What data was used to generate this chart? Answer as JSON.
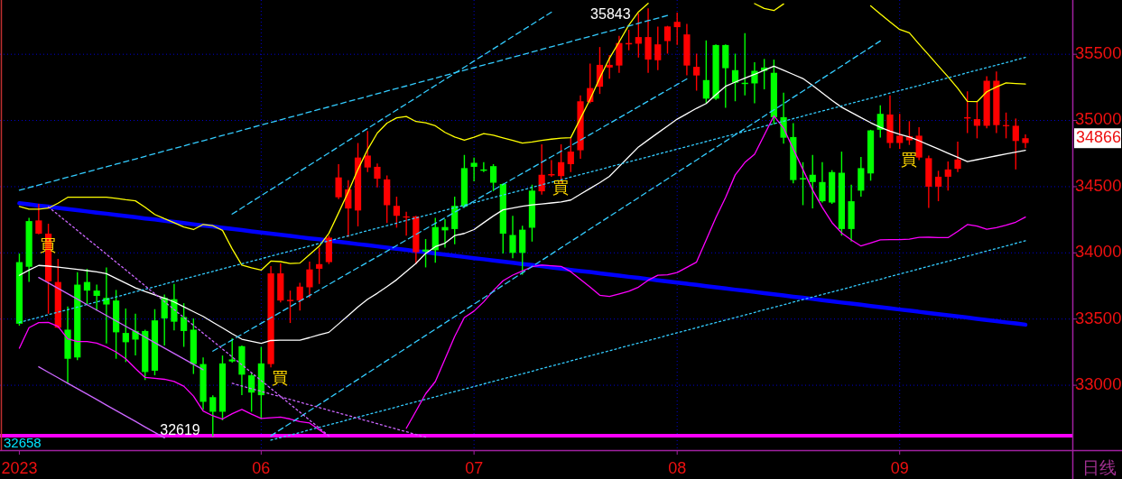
{
  "chart_data": {
    "type": "candlestick",
    "categories": [
      "2023",
      null,
      null,
      null,
      null,
      null,
      null,
      null,
      null,
      null,
      null,
      null,
      null,
      null,
      null,
      null,
      null,
      null,
      null,
      null,
      null,
      null,
      null,
      null,
      null,
      "06",
      null,
      null,
      null,
      null,
      null,
      null,
      null,
      null,
      null,
      null,
      null,
      null,
      null,
      null,
      null,
      null,
      null,
      null,
      null,
      null,
      null,
      "07",
      null,
      null,
      null,
      null,
      null,
      null,
      null,
      null,
      null,
      null,
      null,
      null,
      null,
      null,
      null,
      null,
      null,
      null,
      null,
      null,
      "08",
      null,
      null,
      null,
      null,
      null,
      null,
      null,
      null,
      null,
      null,
      null,
      null,
      null,
      null,
      null,
      null,
      null,
      null,
      null,
      null,
      null,
      null,
      "09",
      null,
      null,
      null,
      null,
      null,
      null,
      null,
      null,
      null,
      null,
      null,
      null,
      null
    ],
    "ohlc": [
      [
        33930,
        33990,
        33455,
        33465
      ],
      [
        34240,
        34260,
        33785,
        33895
      ],
      [
        34145,
        34365,
        34145,
        34245
      ],
      [
        33785,
        34215,
        33545,
        34145
      ],
      [
        33435,
        33950,
        33435,
        33780
      ],
      [
        33420,
        33590,
        33020,
        33200
      ],
      [
        33760,
        33850,
        33195,
        33210
      ],
      [
        33780,
        33875,
        33615,
        33715
      ],
      [
        33715,
        33755,
        33570,
        33675
      ],
      [
        33660,
        33885,
        33320,
        33610
      ],
      [
        33640,
        33715,
        33205,
        33400
      ],
      [
        33395,
        33575,
        33180,
        33325
      ],
      [
        33410,
        33535,
        33230,
        33345
      ],
      [
        33410,
        33415,
        33045,
        33100
      ],
      [
        33490,
        33570,
        33080,
        33110
      ],
      [
        33660,
        33680,
        33305,
        33505
      ],
      [
        33650,
        33760,
        33420,
        33480
      ],
      [
        33515,
        33615,
        33295,
        33410
      ],
      [
        33420,
        33500,
        33090,
        33160
      ],
      [
        33160,
        33205,
        32820,
        32875
      ],
      [
        32910,
        32920,
        32619,
        32800
      ],
      [
        33165,
        33220,
        32740,
        32800
      ],
      [
        33195,
        33350,
        33175,
        33180
      ],
      [
        33295,
        33295,
        32930,
        33080
      ],
      [
        33075,
        33090,
        32805,
        32945
      ],
      [
        33165,
        33285,
        32750,
        32925
      ],
      [
        33160,
        33895,
        33140,
        33845
      ],
      [
        33640,
        33915,
        33630,
        33845
      ],
      [
        33635,
        33710,
        33475,
        33645
      ],
      [
        33640,
        33770,
        33570,
        33745
      ],
      [
        33740,
        33930,
        33665,
        33875
      ],
      [
        33880,
        34035,
        33770,
        33915
      ],
      [
        33930,
        34125,
        33920,
        34115
      ],
      [
        34420,
        34665,
        34410,
        34570
      ],
      [
        34335,
        34545,
        34125,
        34480
      ],
      [
        34320,
        34825,
        34205,
        34720
      ],
      [
        34645,
        34915,
        34615,
        34735
      ],
      [
        34560,
        34670,
        34500,
        34650
      ],
      [
        34360,
        34580,
        34230,
        34555
      ],
      [
        34280,
        34420,
        34195,
        34355
      ],
      [
        34270,
        34305,
        34135,
        34275
      ],
      [
        34005,
        34275,
        33920,
        34275
      ],
      [
        34025,
        34100,
        33895,
        34010
      ],
      [
        34195,
        34260,
        33930,
        34020
      ],
      [
        34195,
        34250,
        34045,
        34170
      ],
      [
        34355,
        34420,
        34070,
        34180
      ],
      [
        34640,
        34735,
        34345,
        34350
      ],
      [
        34680,
        34715,
        34545,
        34650
      ],
      [
        34630,
        34680,
        34615,
        34620
      ],
      [
        34655,
        34665,
        34470,
        34530
      ],
      [
        34520,
        34520,
        34000,
        34145
      ],
      [
        34135,
        34275,
        33965,
        34000
      ],
      [
        34175,
        34200,
        33840,
        34000
      ],
      [
        34470,
        34510,
        34090,
        34190
      ],
      [
        34465,
        34815,
        34445,
        34590
      ],
      [
        34585,
        34695,
        34580,
        34595
      ],
      [
        34580,
        34815,
        34535,
        34685
      ],
      [
        34670,
        34865,
        34615,
        34765
      ],
      [
        34775,
        35185,
        34715,
        35145
      ],
      [
        35140,
        35425,
        35135,
        35245
      ],
      [
        35255,
        35550,
        35205,
        35420
      ],
      [
        35400,
        35490,
        35320,
        35420
      ],
      [
        35415,
        35635,
        35365,
        35585
      ],
      [
        35575,
        35680,
        35535,
        35585
      ],
      [
        35580,
        35805,
        35480,
        35630
      ],
      [
        35460,
        35843,
        35365,
        35630
      ],
      [
        35455,
        35705,
        35385,
        35575
      ],
      [
        35600,
        35710,
        35510,
        35710
      ],
      [
        35705,
        35810,
        35575,
        35745
      ],
      [
        35415,
        35725,
        35345,
        35650
      ],
      [
        35340,
        35500,
        35230,
        35405
      ],
      [
        35305,
        35600,
        35135,
        35165
      ],
      [
        35570,
        35570,
        35160,
        35165
      ],
      [
        35570,
        35570,
        35100,
        35395
      ],
      [
        35380,
        35500,
        35150,
        35285
      ],
      [
        35285,
        35655,
        35195,
        35275
      ],
      [
        35375,
        35435,
        35135,
        35280
      ],
      [
        35400,
        35460,
        35240,
        35375
      ],
      [
        35360,
        35455,
        34975,
        35025
      ],
      [
        35025,
        35205,
        34830,
        34870
      ],
      [
        34875,
        34975,
        34530,
        34550
      ],
      [
        34565,
        34680,
        34365,
        34555
      ],
      [
        34590,
        34735,
        34340,
        34535
      ],
      [
        34535,
        34680,
        34385,
        34390
      ],
      [
        34610,
        34620,
        34375,
        34380
      ],
      [
        34605,
        34760,
        34135,
        34180
      ],
      [
        34390,
        34510,
        34090,
        34180
      ],
      [
        34640,
        34720,
        34430,
        34470
      ],
      [
        34925,
        34925,
        34550,
        34600
      ],
      [
        35050,
        35110,
        34875,
        34930
      ],
      [
        34830,
        35185,
        34795,
        35045
      ],
      [
        34830,
        35045,
        34790,
        34885
      ],
      [
        34850,
        34990,
        34820,
        34880
      ],
      [
        34720,
        34945,
        34705,
        34885
      ],
      [
        34500,
        34730,
        34345,
        34715
      ],
      [
        34500,
        34615,
        34395,
        34575
      ],
      [
        34575,
        34685,
        34475,
        34630
      ],
      [
        34635,
        34835,
        34615,
        34705
      ],
      [
        35015,
        35215,
        34910,
        35025
      ],
      [
        34960,
        35135,
        34870,
        35010
      ],
      [
        34960,
        35330,
        34945,
        35300
      ],
      [
        34965,
        35365,
        34910,
        35300
      ],
      [
        34960,
        35055,
        34870,
        34965
      ],
      [
        34845,
        35010,
        34635,
        34960
      ],
      [
        34830,
        34890,
        34795,
        34866
      ]
    ],
    "colors": [
      "#00ff00",
      "#00ff00",
      "#ff0000",
      "#ff0000",
      "#ff0000",
      "#00ff00",
      "#00ff00",
      "#00ff00",
      "#00ff00",
      "#00ff00",
      "#00ff00",
      "#00ff00",
      "#00ff00",
      "#00ff00",
      "#00ff00",
      "#00ff00",
      "#00ff00",
      "#00ff00",
      "#00ff00",
      "#00ff00",
      "#00ff00",
      "#00ff00",
      "#00ff00",
      "#00ff00",
      "#00ff00",
      "#00ff00",
      "#ff0000",
      "#ff0000",
      "#ff0000",
      "#ff0000",
      "#ff0000",
      "#ff0000",
      "#ff0000",
      "#ff0000",
      "#ff0000",
      "#ff0000",
      "#ff0000",
      "#ff0000",
      "#ff0000",
      "#ff0000",
      "#ff0000",
      "#ff0000",
      "#00ff00",
      "#00ff00",
      "#00ff00",
      "#00ff00",
      "#00ff00",
      "#00ff00",
      "#00ff00",
      "#00ff00",
      "#00ff00",
      "#00ff00",
      "#00ff00",
      "#00ff00",
      "#ff0000",
      "#ff0000",
      "#ff0000",
      "#ff0000",
      "#ff0000",
      "#ff0000",
      "#ff0000",
      "#ff0000",
      "#ff0000",
      "#ff0000",
      "#ff0000",
      "#ff0000",
      "#ff0000",
      "#ff0000",
      "#ff0000",
      "#ff0000",
      "#ff0000",
      "#00ff00",
      "#00ff00",
      "#00ff00",
      "#00ff00",
      "#00ff00",
      "#00ff00",
      "#00ff00",
      "#00ff00",
      "#00ff00",
      "#00ff00",
      "#00ff00",
      "#00ff00",
      "#00ff00",
      "#00ff00",
      "#00ff00",
      "#00ff00",
      "#00ff00",
      "#00ff00",
      "#00ff00",
      "#ff0000",
      "#ff0000",
      "#ff0000",
      "#ff0000",
      "#ff0000",
      "#ff0000",
      "#ff0000",
      "#ff0000",
      "#ff0000",
      "#ff0000",
      "#ff0000",
      "#ff0000",
      "#ff0000",
      "#ff0000",
      "#ff0000"
    ],
    "value_labels": [
      null,
      null,
      "買",
      null,
      null,
      null,
      null,
      null,
      null,
      null,
      null,
      null,
      null,
      null,
      null,
      null,
      null,
      null,
      null,
      null,
      null,
      null,
      null,
      null,
      null,
      null,
      "買",
      null,
      null,
      null,
      null,
      null,
      null,
      null,
      null,
      null,
      null,
      null,
      null,
      null,
      null,
      null,
      null,
      null,
      null,
      null,
      null,
      null,
      null,
      null,
      null,
      null,
      null,
      null,
      null,
      "買",
      null,
      null,
      null,
      null,
      null,
      null,
      null,
      null,
      null,
      null,
      null,
      null,
      null,
      null,
      null,
      null,
      null,
      null,
      null,
      null,
      null,
      null,
      null,
      null,
      null,
      null,
      null,
      null,
      null,
      null,
      null,
      null,
      null,
      null,
      null,
      "買",
      null,
      null,
      null,
      null,
      null,
      null,
      null,
      null,
      null,
      null,
      null,
      null,
      null
    ],
    "series": [
      {
        "type": "line",
        "color": "#ffffff",
        "line_style": "solid",
        "values": [
          33830,
          33870,
          33905,
          33900,
          33892,
          33884,
          33875,
          33866,
          33857,
          33843,
          33807,
          33771,
          33736,
          33708,
          33683,
          33658,
          33629,
          33593,
          33556,
          33520,
          33476,
          33433,
          33389,
          33348,
          33332,
          33317,
          33338,
          33340,
          33340,
          33340,
          33360,
          33382,
          33400,
          33463,
          33527,
          33591,
          33650,
          33695,
          33745,
          33797,
          33859,
          33920,
          33996,
          34047,
          34073,
          34130,
          34147,
          34176,
          34228,
          34279,
          34325,
          34338,
          34352,
          34362,
          34369,
          34377,
          34384,
          34399,
          34443,
          34487,
          34530,
          34578,
          34652,
          34726,
          34800,
          34853,
          34906,
          34958,
          35010,
          35051,
          35092,
          35128,
          35195,
          35258,
          35290,
          35320,
          35348,
          35379,
          35410,
          35379,
          35348,
          35317,
          35264,
          35208,
          35152,
          35100,
          35061,
          35022,
          34983,
          34948,
          34920,
          34896,
          34875,
          34847,
          34816,
          34785,
          34753,
          34722,
          34690,
          34704,
          34718,
          34733,
          34747,
          34761,
          34775
        ]
      },
      {
        "type": "line",
        "color": "#ffff00",
        "line_style": "solid",
        "values": [
          34350,
          34330,
          34330,
          34338,
          34375,
          34420,
          34420,
          34420,
          34420,
          34420,
          34412,
          34401,
          34393,
          34345,
          34290,
          34258,
          34228,
          34195,
          34176,
          34215,
          34205,
          34170,
          34030,
          33908,
          33887,
          33870,
          33938,
          33934,
          33920,
          33923,
          33987,
          34051,
          34148,
          34303,
          34460,
          34630,
          34780,
          34905,
          34980,
          35020,
          35030,
          34992,
          34982,
          34960,
          34910,
          34875,
          34852,
          34873,
          34900,
          34889,
          34869,
          34849,
          34829,
          34838,
          34849,
          34859,
          34866,
          34870,
          35015,
          35160,
          35321,
          35470,
          35593,
          35720,
          35820,
          35885,
          null,
          null,
          null,
          null,
          null,
          null,
          null,
          null,
          null,
          null,
          35883,
          35846,
          35830,
          35880,
          null,
          null,
          null,
          null,
          null,
          null,
          null,
          null,
          35866,
          35805,
          35744,
          35687,
          35662,
          35577,
          35495,
          35412,
          35330,
          35243,
          35145,
          35142,
          35217,
          35253,
          35284,
          35279,
          35275
        ]
      },
      {
        "type": "line",
        "color": "#ff00ff",
        "line_style": "solid",
        "values": [
          33280,
          33435,
          33473,
          33475,
          33444,
          33351,
          33330,
          33330,
          33318,
          33289,
          33251,
          33200,
          33127,
          33059,
          33053,
          33045,
          33029,
          32993,
          32918,
          32805,
          32769,
          32745,
          32785,
          32817,
          32782,
          32750,
          32754,
          32759,
          32745,
          32726,
          32715,
          32664,
          32612,
          null,
          null,
          null,
          null,
          null,
          null,
          null,
          32675,
          32805,
          32936,
          33028,
          33198,
          33369,
          33512,
          33560,
          33630,
          33715,
          33789,
          33832,
          33863,
          33895,
          33908,
          33903,
          33898,
          33858,
          33800,
          33742,
          33680,
          33671,
          33690,
          33710,
          33741,
          33793,
          33831,
          33834,
          33851,
          33891,
          33930,
          34098,
          34266,
          34418,
          34589,
          34683,
          34745,
          34890,
          35035,
          34942,
          34785,
          34630,
          34475,
          34344,
          34229,
          34150,
          34098,
          34052,
          34075,
          34098,
          34100,
          34100,
          34103,
          34117,
          34118,
          34116,
          34115,
          34162,
          34214,
          34203,
          34178,
          34191,
          34209,
          34232,
          34270
        ]
      },
      {
        "type": "line",
        "color": "#0000ff",
        "line_style": "solid",
        "values": [
          34375,
          34366,
          34357,
          34349,
          34340,
          34331,
          34322,
          34313,
          34304,
          34296,
          34287,
          34278,
          34269,
          34260,
          34252,
          34243,
          34234,
          34225,
          34216,
          34207,
          34199,
          34190,
          34181,
          34172,
          34163,
          34154,
          34146,
          34137,
          34128,
          34119,
          34110,
          34102,
          34093,
          34084,
          34075,
          34066,
          34058,
          34049,
          34040,
          34031,
          34022,
          34013,
          34005,
          33996,
          33987,
          33978,
          33969,
          33960,
          33952,
          33943,
          33934,
          33925,
          33916,
          33908,
          33899,
          33890,
          33881,
          33872,
          33863,
          33855,
          33846,
          33837,
          33828,
          33819,
          33811,
          33802,
          33793,
          33784,
          33775,
          33767,
          33758,
          33749,
          33740,
          33731,
          33722,
          33714,
          33705,
          33696,
          33687,
          33678,
          33669,
          33661,
          33652,
          33643,
          33634,
          33625,
          33617,
          33608,
          33599,
          33590,
          33581,
          33572,
          33564,
          33555,
          33546,
          33537,
          33528,
          33520,
          33511,
          33502,
          33493,
          33484,
          33475,
          33467,
          33458
        ]
      },
      {
        "type": "line",
        "color": "#33ccff",
        "line_style": "dashed",
        "values": [
          34473,
          34493,
          34512,
          34532,
          34552,
          34572,
          34591,
          34611,
          34631,
          34650,
          34670,
          34690,
          34709,
          34729,
          34749,
          34769,
          34788,
          34808,
          34828,
          34847,
          34867,
          34887,
          34906,
          34926,
          34946,
          34966,
          34985,
          35005,
          35025,
          35044,
          35064,
          35084,
          35103,
          35123,
          35143,
          35163,
          35182,
          35202,
          35222,
          35241,
          35261,
          35281,
          35300,
          35320,
          35340,
          35360,
          35379,
          35399,
          35419,
          35438,
          35458,
          35478,
          35497,
          35517,
          35537,
          35557,
          35576,
          35596,
          35616,
          35635,
          35655,
          35675,
          35694,
          35714,
          35734,
          35754,
          35773,
          35793,
          null,
          null,
          null,
          null,
          null,
          null,
          null,
          null,
          null,
          null,
          null,
          null,
          null,
          null,
          null,
          null,
          null,
          null,
          null,
          null,
          null,
          null,
          null,
          null,
          null,
          null,
          null,
          null,
          null,
          null,
          null,
          null,
          null,
          null,
          null,
          null,
          null
        ]
      },
      {
        "type": "line",
        "color": "#33ccff",
        "line_style": "dotted",
        "values": [
          33475,
          33494,
          33513,
          33533,
          33552,
          33571,
          33590,
          33610,
          33629,
          33648,
          33667,
          33687,
          33706,
          33725,
          33744,
          33764,
          33783,
          33802,
          33821,
          33841,
          33860,
          33879,
          33898,
          33918,
          33937,
          33956,
          33975,
          33995,
          34014,
          34033,
          34052,
          34071,
          34091,
          34110,
          34129,
          34148,
          34168,
          34187,
          34206,
          34225,
          34245,
          34264,
          34283,
          34302,
          34322,
          34341,
          34360,
          34379,
          34399,
          34418,
          34437,
          34456,
          34475,
          34495,
          34514,
          34533,
          34552,
          34572,
          34591,
          34610,
          34629,
          34649,
          34668,
          34687,
          34706,
          34726,
          34745,
          34764,
          34783,
          34803,
          34822,
          34841,
          34860,
          34880,
          34899,
          34918,
          34937,
          34956,
          34976,
          34995,
          35014,
          35033,
          35053,
          35072,
          35091,
          35110,
          35130,
          35149,
          35168,
          35187,
          35207,
          35226,
          35245,
          35264,
          35284,
          35303,
          35322,
          35341,
          35361,
          35380,
          35399,
          35418,
          35437,
          35457,
          35476
        ]
      },
      {
        "type": "line",
        "color": "#33ccff",
        "line_style": "dotted",
        "values": [
          null,
          null,
          null,
          null,
          null,
          null,
          null,
          null,
          null,
          null,
          null,
          null,
          null,
          null,
          null,
          null,
          null,
          null,
          null,
          null,
          null,
          null,
          null,
          null,
          null,
          null,
          32585,
          32605,
          32624,
          32643,
          32663,
          32682,
          32701,
          32720,
          32740,
          32759,
          32778,
          32798,
          32817,
          32836,
          32856,
          32875,
          32894,
          32913,
          32933,
          32952,
          32971,
          32991,
          33010,
          33029,
          33049,
          33068,
          33087,
          33106,
          33126,
          33145,
          33164,
          33184,
          33203,
          33222,
          33242,
          33261,
          33280,
          33300,
          33319,
          33338,
          33357,
          33377,
          33396,
          33415,
          33435,
          33454,
          33473,
          33493,
          33512,
          33531,
          33550,
          33570,
          33589,
          33608,
          33628,
          33647,
          33666,
          33686,
          33705,
          33724,
          33743,
          33763,
          33782,
          33801,
          33821,
          33840,
          33859,
          33879,
          33898,
          33917,
          33936,
          33956,
          33975,
          33994,
          34014,
          34033,
          34052,
          34072,
          34091
        ]
      },
      {
        "type": "line",
        "color": "#33ccff",
        "line_style": "dashed",
        "values": [
          null,
          null,
          null,
          null,
          null,
          null,
          null,
          null,
          null,
          null,
          null,
          null,
          null,
          null,
          null,
          null,
          null,
          null,
          null,
          null,
          null,
          null,
          34293,
          34339,
          34386,
          34432,
          34478,
          34524,
          34570,
          34617,
          34663,
          34709,
          34755,
          34802,
          34848,
          34894,
          34940,
          34986,
          35033,
          35079,
          35125,
          35171,
          35218,
          35264,
          35310,
          35356,
          35402,
          35449,
          35495,
          35541,
          35587,
          35634,
          35680,
          35726,
          35772,
          35818,
          null,
          null,
          null,
          null,
          null,
          null,
          null,
          null,
          null,
          null,
          null,
          null,
          null,
          null,
          null,
          null,
          null,
          null,
          null,
          null,
          null,
          null,
          null,
          null,
          null,
          null,
          null,
          null,
          null,
          null,
          null,
          null,
          null,
          null,
          null,
          null,
          null,
          null,
          null,
          null,
          null,
          null,
          null,
          null,
          null,
          null,
          null,
          null,
          null
        ]
      },
      {
        "type": "line",
        "color": "#33ccff",
        "line_style": "dashed",
        "values": [
          null,
          null,
          null,
          null,
          null,
          null,
          null,
          null,
          null,
          null,
          null,
          null,
          null,
          null,
          null,
          null,
          null,
          null,
          null,
          null,
          33258,
          33300,
          33342,
          33384,
          33426,
          33468,
          33510,
          33552,
          33594,
          33636,
          33678,
          33720,
          33762,
          33804,
          33846,
          33888,
          33929,
          33971,
          34013,
          34055,
          34097,
          34139,
          34181,
          34223,
          34265,
          34307,
          34349,
          34391,
          34433,
          34475,
          34517,
          34559,
          34601,
          34642,
          34684,
          34726,
          34768,
          34810,
          34852,
          34894,
          34936,
          34978,
          35020,
          35062,
          35104,
          35146,
          35188,
          35230,
          35272,
          35314,
          null,
          null,
          null,
          null,
          null,
          null,
          null,
          null,
          null,
          null,
          null,
          null,
          null,
          null,
          null,
          null,
          null,
          null,
          null,
          null,
          null,
          null,
          null,
          null,
          null,
          null,
          null,
          null,
          null,
          null,
          null,
          null,
          null,
          null,
          null
        ]
      },
      {
        "type": "line",
        "color": "#33ccff",
        "line_style": "dashed",
        "values": [
          null,
          null,
          null,
          null,
          null,
          null,
          null,
          null,
          null,
          null,
          null,
          null,
          null,
          null,
          null,
          null,
          null,
          null,
          null,
          null,
          null,
          null,
          null,
          null,
          null,
          null,
          32618,
          32666,
          32713,
          32760,
          32808,
          32855,
          32902,
          32950,
          32997,
          33044,
          33092,
          33139,
          33187,
          33234,
          33281,
          33329,
          33376,
          33423,
          33471,
          33518,
          33565,
          33613,
          33660,
          33707,
          33755,
          33802,
          33849,
          33897,
          33944,
          33991,
          34039,
          34086,
          34133,
          34181,
          34228,
          34275,
          34323,
          34370,
          34417,
          34465,
          34512,
          34559,
          34607,
          34654,
          34701,
          34749,
          34796,
          34843,
          34891,
          34938,
          34985,
          35033,
          35080,
          35127,
          35175,
          35222,
          35269,
          35317,
          35364,
          35411,
          35459,
          35506,
          35553,
          35601,
          null,
          null,
          null,
          null,
          null,
          null,
          null,
          null,
          null,
          null,
          null,
          null,
          null,
          null,
          null
        ]
      },
      {
        "type": "line",
        "color": "#cc66ff",
        "line_style": "solid",
        "values": [
          null,
          null,
          33814,
          33773,
          33732,
          33691,
          33650,
          33609,
          33568,
          33527,
          33486,
          33445,
          33405,
          33363,
          33322,
          33281,
          33240,
          33199,
          33158,
          33117,
          null,
          null,
          null,
          null,
          null,
          null,
          null,
          null,
          null,
          null,
          null,
          null,
          null,
          null,
          null,
          null,
          null,
          null,
          null,
          null,
          null,
          null,
          null,
          null,
          null,
          null,
          null,
          null,
          null,
          null,
          null,
          null,
          null,
          null,
          null,
          null,
          null,
          null,
          null,
          null,
          null,
          null,
          null,
          null,
          null,
          null,
          null,
          null,
          null,
          null,
          null,
          null,
          null,
          null,
          null,
          null,
          null,
          null,
          null,
          null,
          null,
          null,
          null,
          null,
          null,
          null,
          null,
          null,
          null,
          null,
          null,
          null,
          null,
          null,
          null,
          null,
          null,
          null,
          null,
          null,
          null,
          null,
          null,
          null,
          null
        ]
      },
      {
        "type": "line",
        "color": "#cc66ff",
        "line_style": "solid",
        "values": [
          null,
          null,
          33139,
          33098,
          33057,
          33015,
          32974,
          32933,
          32892,
          32850,
          32809,
          32768,
          32727,
          32685,
          32644,
          32603,
          null,
          null,
          null,
          null,
          null,
          null,
          null,
          null,
          null,
          null,
          null,
          null,
          null,
          null,
          null,
          null,
          null,
          null,
          null,
          null,
          null,
          null,
          null,
          null,
          null,
          null,
          null,
          null,
          null,
          null,
          null,
          null,
          null,
          null,
          null,
          null,
          null,
          null,
          null,
          null,
          null,
          null,
          null,
          null,
          null,
          null,
          null,
          null,
          null,
          null,
          null,
          null,
          null,
          null,
          null,
          null,
          null,
          null,
          null,
          null,
          null,
          null,
          null,
          null,
          null,
          null,
          null,
          null,
          null,
          null,
          null,
          null,
          null,
          null,
          null,
          null,
          null,
          null,
          null,
          null,
          null,
          null,
          null,
          null,
          null,
          null,
          null,
          null,
          null
        ]
      },
      {
        "type": "line",
        "color": "#cc66ff",
        "line_style": "dotted",
        "values": [
          null,
          null,
          null,
          34348,
          34288,
          34229,
          34169,
          34109,
          34050,
          33990,
          33930,
          33871,
          33811,
          33751,
          33691,
          33632,
          33572,
          33512,
          33453,
          33393,
          33334,
          33274,
          33214,
          33155,
          33095,
          33035,
          32976,
          32916,
          32856,
          32797,
          32737,
          32677,
          32618,
          null,
          null,
          null,
          null,
          null,
          null,
          null,
          null,
          null,
          null,
          null,
          null,
          null,
          null,
          null,
          null,
          null,
          null,
          null,
          null,
          null,
          null,
          null,
          null,
          null,
          null,
          null,
          null,
          null,
          null,
          null,
          null,
          null,
          null,
          null,
          null,
          null,
          null,
          null,
          null,
          null,
          null,
          null,
          null,
          null,
          null,
          null,
          null,
          null,
          null,
          null,
          null,
          null,
          null,
          null,
          null,
          null,
          null,
          null,
          null,
          null,
          null,
          null,
          null,
          null,
          null,
          null,
          null,
          null,
          null,
          null,
          null
        ]
      },
      {
        "type": "line",
        "color": "#cc66ff",
        "line_style": "dotted",
        "values": [
          null,
          null,
          null,
          null,
          null,
          null,
          null,
          null,
          null,
          null,
          null,
          null,
          null,
          null,
          null,
          null,
          null,
          null,
          null,
          null,
          null,
          null,
          33015,
          32994,
          32974,
          32954,
          32933,
          32913,
          32893,
          32872,
          32852,
          32832,
          32811,
          32791,
          32771,
          32750,
          32730,
          32710,
          32689,
          32669,
          32649,
          32628,
          32608,
          null,
          null,
          null,
          null,
          null,
          null,
          null,
          null,
          null,
          null,
          null,
          null,
          null,
          null,
          null,
          null,
          null,
          null,
          null,
          null,
          null,
          null,
          null,
          null,
          null,
          null,
          null,
          null,
          null,
          null,
          null,
          null,
          null,
          null,
          null,
          null,
          null,
          null,
          null,
          null,
          null,
          null,
          null,
          null,
          null,
          null,
          null,
          null,
          null,
          null,
          null,
          null,
          null,
          null,
          null,
          null,
          null,
          null,
          null,
          null,
          null,
          null
        ]
      }
    ],
    "ylim": [
      32510,
      35910
    ],
    "yticks": [
      33000,
      33500,
      34000,
      34500,
      35000,
      35500
    ],
    "grid": true,
    "ref_lines": [
      {
        "axis": "y",
        "value": 32619,
        "color": "#ff00ff"
      }
    ],
    "annotations": [
      "35843",
      {
        "text": "32619",
        "y": 32619
      },
      "34866",
      "32658",
      "日线"
    ]
  }
}
